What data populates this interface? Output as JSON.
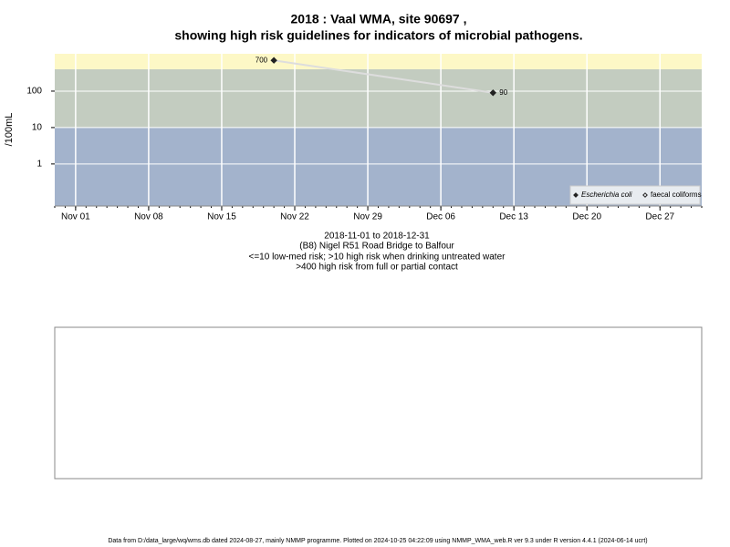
{
  "chart_data": {
    "type": "line",
    "title": "2018 : Vaal WMA, site 90697 ,",
    "subtitle": "showing high risk guidelines for indicators of microbial pathogens.",
    "ylabel": "/100mL",
    "caption": [
      "2018-11-01 to 2018-12-31",
      "(B8) Nigel R51 Road Bridge to Balfour",
      "<=10 low-med risk; >10 high risk when drinking untreated water",
      ">400 high risk from full or partial contact"
    ],
    "footer": "Data from D:/data_large/wq/wms.db dated 2024-08-27, mainly NMMP programme. Plotted on 2024-10-25 04:22:09 using NMMP_WMA_web.R ver 9.3 under R version 4.4.1 (2024-06-14 ucrt)",
    "x": [
      "2018-11-20",
      "2018-12-11"
    ],
    "series": [
      {
        "name": "Escherichia coli",
        "color": "#222222",
        "marker": "filled-diamond",
        "values": [
          700,
          90
        ]
      },
      {
        "name": "faecal coliforms",
        "color": "#222222",
        "marker": "open-diamond",
        "values": [
          null,
          null
        ]
      }
    ],
    "line_color": "#dddddd",
    "log_scale": true,
    "ylim": [
      0.07,
      1060
    ],
    "yticks": [
      1,
      10,
      100
    ],
    "xlim": [
      "2018-10-30",
      "2018-12-31"
    ],
    "xticks": [
      {
        "value": "2018-11-01",
        "label": "Nov 01"
      },
      {
        "value": "2018-11-08",
        "label": "Nov 08"
      },
      {
        "value": "2018-11-15",
        "label": "Nov 15"
      },
      {
        "value": "2018-11-22",
        "label": "Nov 22"
      },
      {
        "value": "2018-11-29",
        "label": "Nov 29"
      },
      {
        "value": "2018-12-06",
        "label": "Dec 06"
      },
      {
        "value": "2018-12-13",
        "label": "Dec 13"
      },
      {
        "value": "2018-12-20",
        "label": "Dec 20"
      },
      {
        "value": "2018-12-27",
        "label": "Dec 27"
      }
    ],
    "thresholds": [
      10,
      400
    ],
    "band_colors": [
      "#a3b3cc",
      "#c3ccc0",
      "#fdf8c6"
    ],
    "grid": true,
    "legend_position": "bottom-right"
  }
}
